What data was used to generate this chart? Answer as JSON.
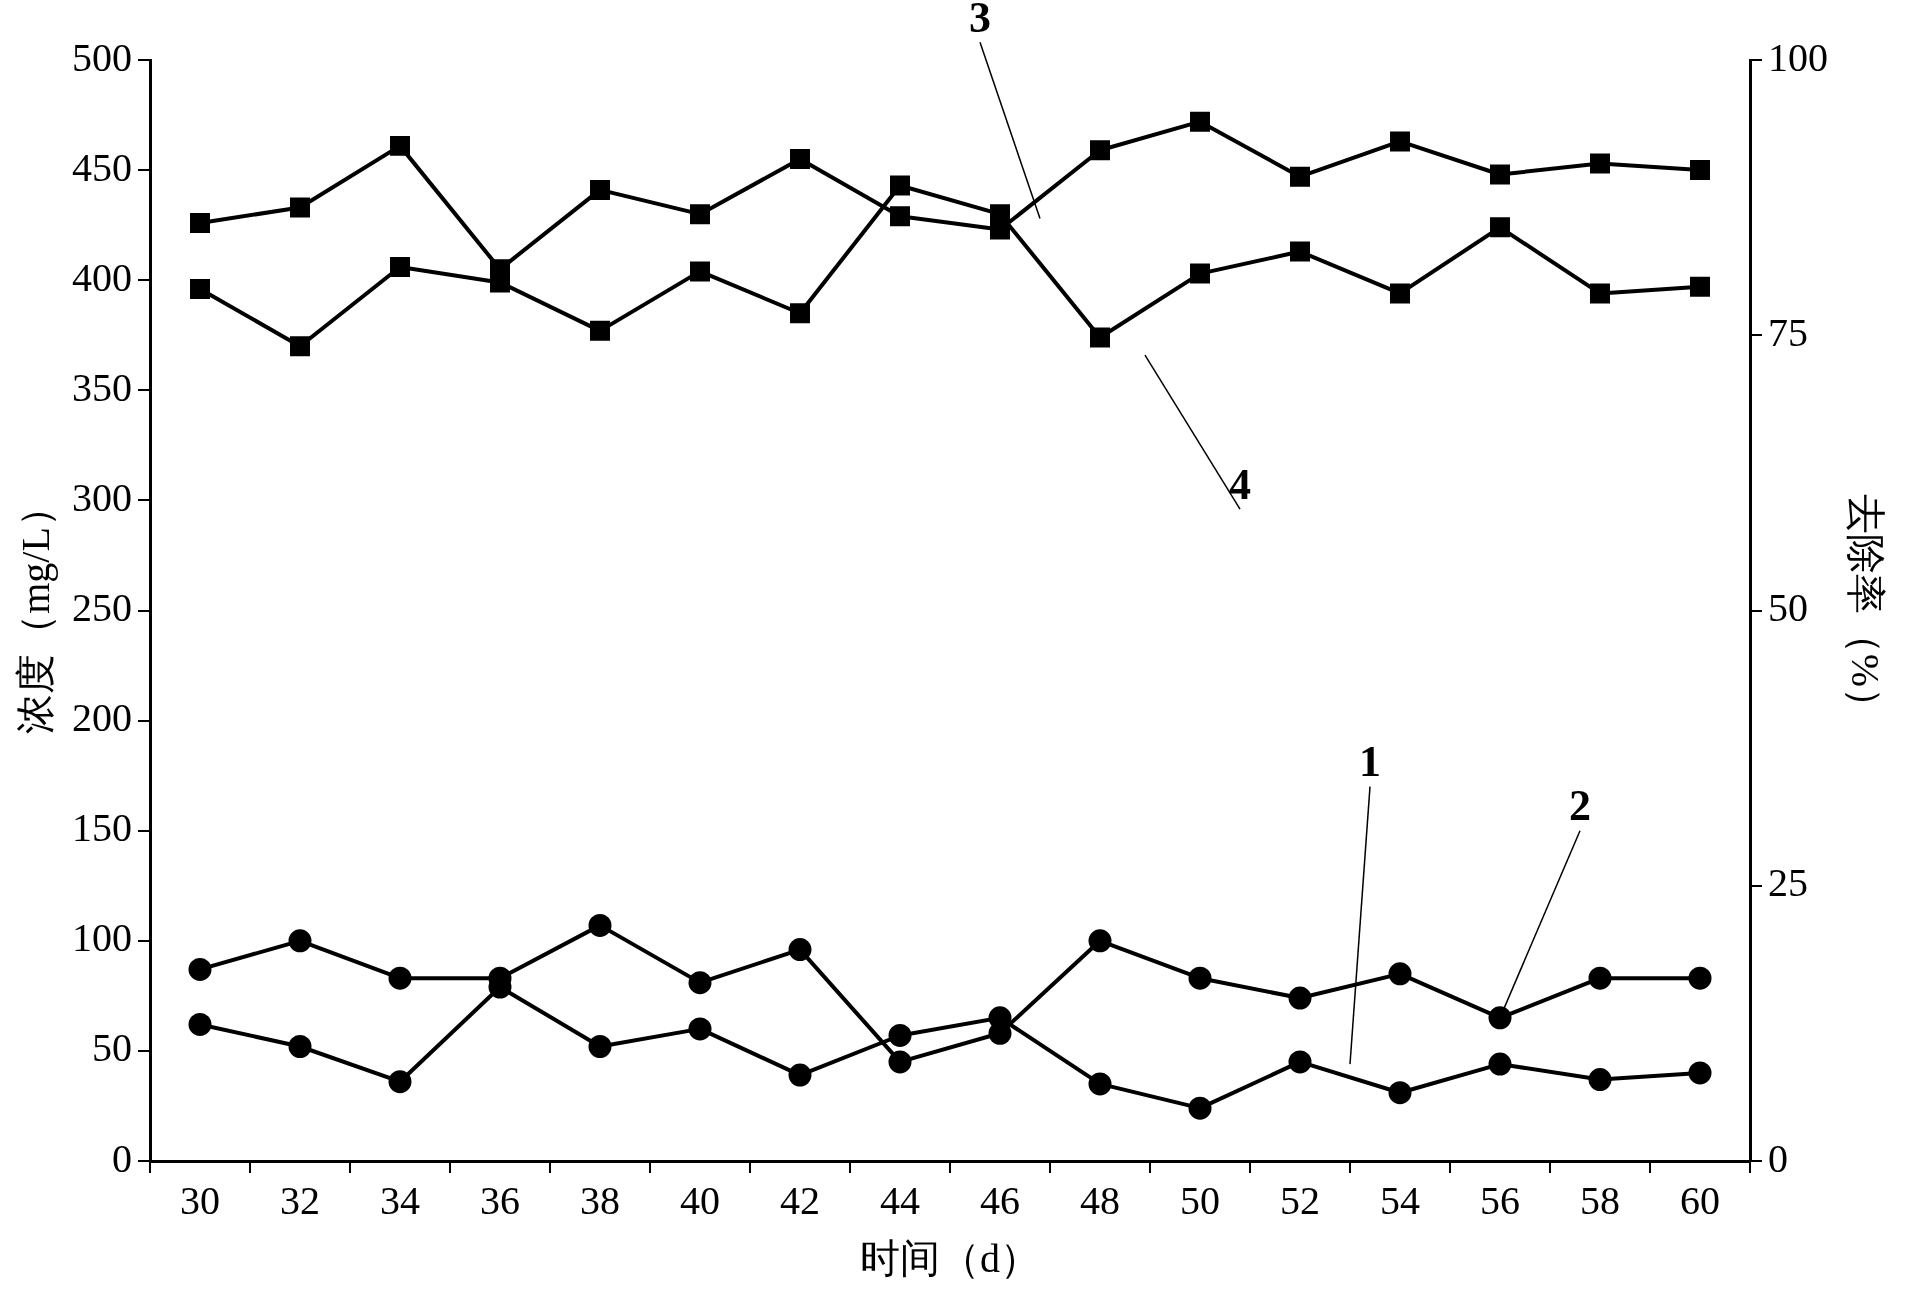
{
  "chart_data": {
    "type": "line",
    "xlabel": "时间（d）",
    "ylabel": "浓度（mg/L）",
    "y2label": "去除率（%）",
    "categories": [
      "30",
      "32",
      "34",
      "36",
      "38",
      "40",
      "42",
      "44",
      "46",
      "48",
      "50",
      "52",
      "54",
      "56",
      "58",
      "60"
    ],
    "series": [
      {
        "color": "#000000",
        "marker": "circle",
        "values": [
          62,
          52,
          36,
          79,
          52,
          60,
          39,
          57,
          65,
          35,
          24,
          45,
          31,
          44,
          37,
          40
        ]
      },
      {
        "color": "#000000",
        "marker": "circle",
        "values": [
          87,
          100,
          83,
          83,
          107,
          81,
          96,
          45,
          58,
          100,
          83,
          74,
          85,
          65,
          83,
          83
        ]
      },
      {
        "color": "#000000",
        "marker": "square",
        "values": [
          426,
          433,
          461,
          405,
          441,
          430,
          455,
          429,
          423,
          459,
          472,
          447,
          463,
          448,
          453,
          450
        ]
      },
      {
        "color": "#000000",
        "marker": "square",
        "values": [
          396,
          370,
          406,
          399,
          377,
          404,
          385,
          443,
          430,
          374,
          403,
          413,
          394,
          424,
          394,
          397
        ]
      }
    ],
    "ylim": [
      0,
      500
    ],
    "yticks": [
      0,
      50,
      100,
      150,
      200,
      250,
      300,
      350,
      400,
      450,
      500
    ],
    "y2lim": [
      0,
      100
    ],
    "y2ticks": [
      0,
      25,
      50,
      75,
      100
    ],
    "annotations": [
      "1",
      {
        "text": "2",
        "x": "56",
        "y": 65
      },
      "3",
      "4"
    ],
    "grid": false,
    "legend": false,
    "line_style": "solid"
  }
}
